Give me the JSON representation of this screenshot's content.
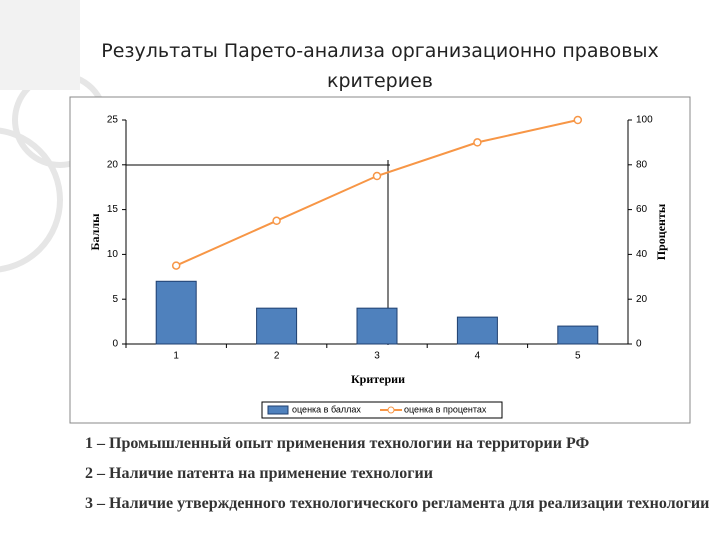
{
  "chart_data": {
    "type": "bar-line",
    "title": "Результаты Парето-анализа организационно правовых критериев",
    "x_label": "Критерии",
    "y_label": "Баллы",
    "y2_label": "Проценты",
    "categories": [
      "1",
      "2",
      "3",
      "4",
      "5"
    ],
    "series": [
      {
        "name": "оценка в баллах",
        "type": "bar",
        "color": "#4f81bd",
        "values": [
          7,
          4,
          4,
          3,
          2
        ]
      },
      {
        "name": "оценка в процентах",
        "type": "line",
        "axis": "y2",
        "color": "#f79646",
        "values": [
          35,
          55,
          75,
          90,
          100
        ]
      }
    ],
    "ylim": [
      0,
      25
    ],
    "yticks": [
      0,
      5,
      10,
      15,
      20,
      25
    ],
    "y2lim": [
      0,
      100
    ],
    "y2ticks": [
      0,
      20,
      40,
      60,
      80,
      100
    ],
    "grid": false,
    "legend": "bottom"
  },
  "notes": [
    "1 – Промышленный опыт применения технологии на территории РФ",
    "2 – Наличие патента на применение технологии",
    "3 – Наличие утвержденного технологического регламента для реализации технологии"
  ]
}
